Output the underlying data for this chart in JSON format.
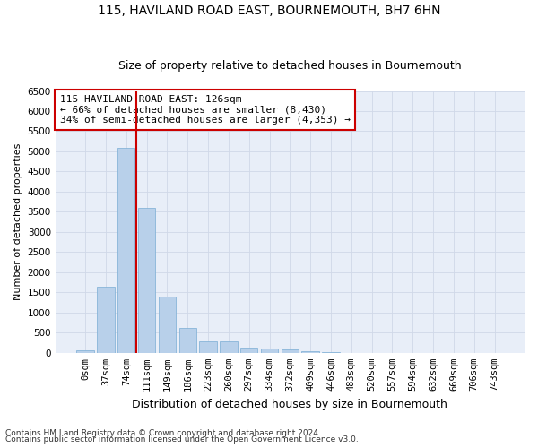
{
  "title1": "115, HAVILAND ROAD EAST, BOURNEMOUTH, BH7 6HN",
  "title2": "Size of property relative to detached houses in Bournemouth",
  "xlabel": "Distribution of detached houses by size in Bournemouth",
  "ylabel": "Number of detached properties",
  "footnote1": "Contains HM Land Registry data © Crown copyright and database right 2024.",
  "footnote2": "Contains public sector information licensed under the Open Government Licence v3.0.",
  "bar_labels": [
    "0sqm",
    "37sqm",
    "74sqm",
    "111sqm",
    "149sqm",
    "186sqm",
    "223sqm",
    "260sqm",
    "297sqm",
    "334sqm",
    "372sqm",
    "409sqm",
    "446sqm",
    "483sqm",
    "520sqm",
    "557sqm",
    "594sqm",
    "632sqm",
    "669sqm",
    "706sqm",
    "743sqm"
  ],
  "bar_values": [
    70,
    1650,
    5080,
    3600,
    1400,
    610,
    295,
    290,
    135,
    110,
    75,
    45,
    10,
    5,
    3,
    2,
    1,
    1,
    0,
    0,
    0
  ],
  "bar_color": "#b8d0ea",
  "bar_edge_color": "#7aadd4",
  "vline_color": "#cc0000",
  "annotation_title": "115 HAVILAND ROAD EAST: 126sqm",
  "annotation_line1": "← 66% of detached houses are smaller (8,430)",
  "annotation_line2": "34% of semi-detached houses are larger (4,353) →",
  "annotation_box_color": "#cc0000",
  "ylim": [
    0,
    6500
  ],
  "yticks": [
    0,
    500,
    1000,
    1500,
    2000,
    2500,
    3000,
    3500,
    4000,
    4500,
    5000,
    5500,
    6000,
    6500
  ],
  "grid_color": "#d0d8e8",
  "bg_color": "#e8eef8",
  "title1_fontsize": 10,
  "title2_fontsize": 9,
  "xlabel_fontsize": 9,
  "ylabel_fontsize": 8,
  "tick_fontsize": 7.5,
  "annotation_fontsize": 8,
  "footnote_fontsize": 6.5
}
